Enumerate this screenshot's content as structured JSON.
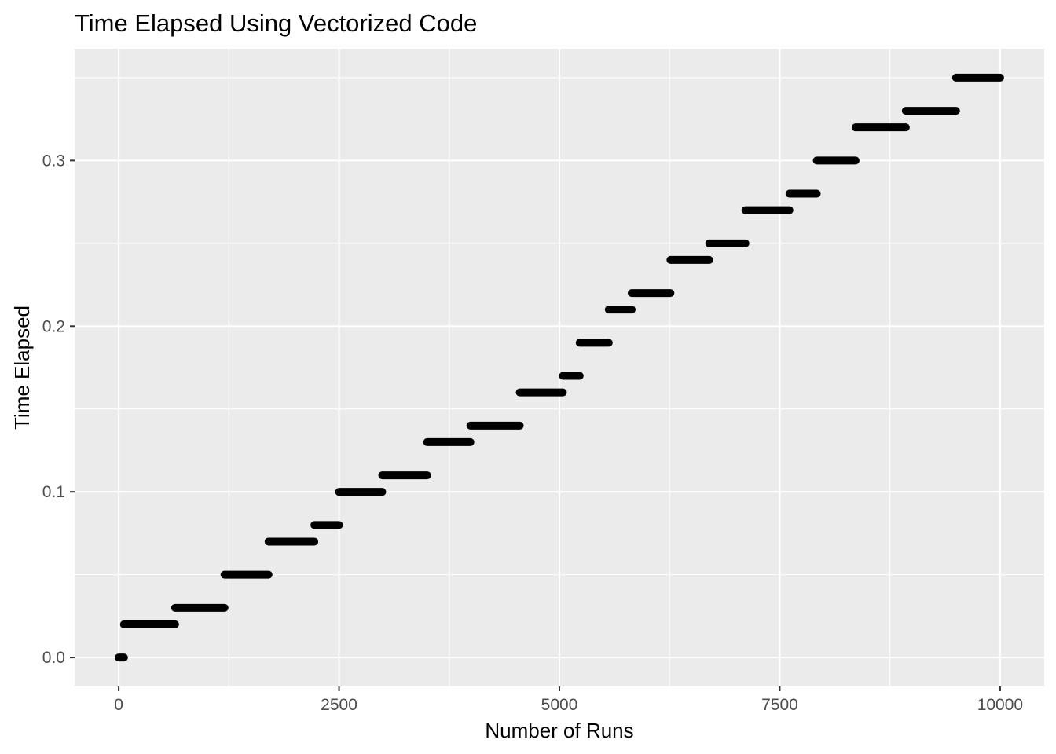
{
  "chart_data": {
    "type": "scatter",
    "title": "Time Elapsed Using Vectorized Code",
    "xlabel": "Number of Runs",
    "ylabel": "Time Elapsed",
    "xlim": [
      -500,
      10500
    ],
    "ylim": [
      -0.0175,
      0.3675
    ],
    "x_ticks": [
      0,
      2500,
      5000,
      7500,
      10000
    ],
    "y_ticks": [
      0.0,
      0.1,
      0.2,
      0.3
    ],
    "x_tick_labels": [
      "0",
      "2500",
      "5000",
      "7500",
      "10000"
    ],
    "y_tick_labels": [
      "0.0",
      "0.1",
      "0.2",
      "0.3"
    ],
    "grid": true,
    "background": "#ebebeb",
    "point_color": "#000000",
    "segments": [
      {
        "x_start": 0,
        "x_end": 60,
        "y": 0.0
      },
      {
        "x_start": 60,
        "x_end": 640,
        "y": 0.02
      },
      {
        "x_start": 640,
        "x_end": 1200,
        "y": 0.03
      },
      {
        "x_start": 1200,
        "x_end": 1700,
        "y": 0.05
      },
      {
        "x_start": 1700,
        "x_end": 2220,
        "y": 0.07
      },
      {
        "x_start": 2220,
        "x_end": 2500,
        "y": 0.08
      },
      {
        "x_start": 2500,
        "x_end": 2990,
        "y": 0.1
      },
      {
        "x_start": 2990,
        "x_end": 3500,
        "y": 0.11
      },
      {
        "x_start": 3500,
        "x_end": 3990,
        "y": 0.13
      },
      {
        "x_start": 3990,
        "x_end": 4550,
        "y": 0.14
      },
      {
        "x_start": 4550,
        "x_end": 5040,
        "y": 0.16
      },
      {
        "x_start": 5040,
        "x_end": 5230,
        "y": 0.17
      },
      {
        "x_start": 5230,
        "x_end": 5560,
        "y": 0.19
      },
      {
        "x_start": 5560,
        "x_end": 5820,
        "y": 0.21
      },
      {
        "x_start": 5820,
        "x_end": 6260,
        "y": 0.22
      },
      {
        "x_start": 6260,
        "x_end": 6700,
        "y": 0.24
      },
      {
        "x_start": 6700,
        "x_end": 7110,
        "y": 0.25
      },
      {
        "x_start": 7110,
        "x_end": 7610,
        "y": 0.27
      },
      {
        "x_start": 7610,
        "x_end": 7920,
        "y": 0.28
      },
      {
        "x_start": 7920,
        "x_end": 8360,
        "y": 0.3
      },
      {
        "x_start": 8360,
        "x_end": 8930,
        "y": 0.32
      },
      {
        "x_start": 8930,
        "x_end": 9500,
        "y": 0.33
      },
      {
        "x_start": 9500,
        "x_end": 10000,
        "y": 0.35
      }
    ]
  }
}
